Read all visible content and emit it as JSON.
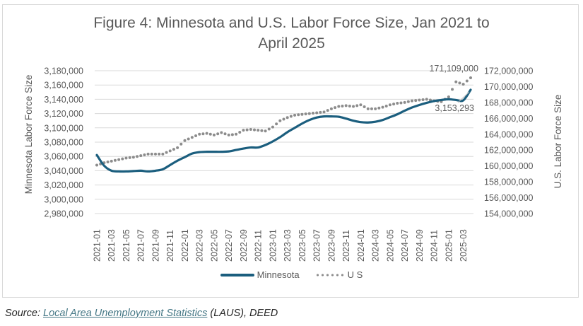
{
  "chart_data": {
    "type": "line",
    "title_line1": "Figure 4: Minnesota and U.S. Labor Force Size, Jan 2021 to",
    "title_line2": "April 2025",
    "xlabel": "",
    "ylabel_left": "Minnesota Labor Force Size",
    "ylabel_right": "U.S. Labor Force Size",
    "ylim_left": [
      2980000,
      3180000
    ],
    "ylim_right": [
      154000000,
      172000000
    ],
    "yticks_left": [
      "3,180,000",
      "3,160,000",
      "3,140,000",
      "3,120,000",
      "3,100,000",
      "3,080,000",
      "3,060,000",
      "3,040,000",
      "3,020,000",
      "3,000,000",
      "2,980,000"
    ],
    "yticks_right": [
      "172,000,000",
      "170,000,000",
      "168,000,000",
      "166,000,000",
      "164,000,000",
      "162,000,000",
      "160,000,000",
      "158,000,000",
      "156,000,000",
      "154,000,000"
    ],
    "x": [
      "2021-01",
      "2021-02",
      "2021-03",
      "2021-04",
      "2021-05",
      "2021-06",
      "2021-07",
      "2021-08",
      "2021-09",
      "2021-10",
      "2021-11",
      "2021-12",
      "2022-01",
      "2022-02",
      "2022-03",
      "2022-04",
      "2022-05",
      "2022-06",
      "2022-07",
      "2022-08",
      "2022-09",
      "2022-10",
      "2022-11",
      "2022-12",
      "2023-01",
      "2023-02",
      "2023-03",
      "2023-04",
      "2023-05",
      "2023-06",
      "2023-07",
      "2023-08",
      "2023-09",
      "2023-10",
      "2023-11",
      "2023-12",
      "2024-01",
      "2024-02",
      "2024-03",
      "2024-04",
      "2024-05",
      "2024-06",
      "2024-07",
      "2024-08",
      "2024-09",
      "2024-10",
      "2024-11",
      "2024-12",
      "2025-01",
      "2025-02",
      "2025-03",
      "2025-04"
    ],
    "xtick_labels": [
      "2021-01",
      "2021-03",
      "2021-05",
      "2021-07",
      "2021-09",
      "2021-11",
      "2022-01",
      "2022-03",
      "2022-05",
      "2022-07",
      "2022-09",
      "2022-11",
      "2023-01",
      "2023-03",
      "2023-05",
      "2023-07",
      "2023-09",
      "2023-11",
      "2024-01",
      "2024-03",
      "2024-05",
      "2024-07",
      "2024-09",
      "2024-11",
      "2025-01",
      "2025-03"
    ],
    "grid": true,
    "legend_position": "bottom",
    "series": [
      {
        "name": "Minnesota",
        "axis": "left",
        "color": "#1b5e7e",
        "style": "solid",
        "values": [
          3062000,
          3047000,
          3040000,
          3039000,
          3039000,
          3039500,
          3040000,
          3039000,
          3040000,
          3042000,
          3048000,
          3054000,
          3059000,
          3064000,
          3066000,
          3066500,
          3066500,
          3066500,
          3067000,
          3069000,
          3071000,
          3072500,
          3072500,
          3076000,
          3081000,
          3087000,
          3094000,
          3100000,
          3106000,
          3111000,
          3114500,
          3116000,
          3116000,
          3115500,
          3113000,
          3110000,
          3108000,
          3107500,
          3108500,
          3111000,
          3115000,
          3119000,
          3124000,
          3128500,
          3132000,
          3135000,
          3137500,
          3139000,
          3140000,
          3139000,
          3138500,
          3153293
        ]
      },
      {
        "name": "US",
        "axis": "right",
        "color": "#8c8c8c",
        "style": "dotted",
        "values": [
          160100000,
          160400000,
          160600000,
          160800000,
          161000000,
          161100000,
          161300000,
          161500000,
          161500000,
          161500000,
          161900000,
          162300000,
          163200000,
          163600000,
          164000000,
          164100000,
          163900000,
          164200000,
          163900000,
          164000000,
          164500000,
          164600000,
          164500000,
          164400000,
          164900000,
          165700000,
          166100000,
          166400000,
          166500000,
          166600000,
          166700000,
          166800000,
          167200000,
          167500000,
          167600000,
          167500000,
          167700000,
          167200000,
          167200000,
          167400000,
          167700000,
          167900000,
          168000000,
          168200000,
          168300000,
          168400000,
          168200000,
          168100000,
          168700000,
          170600000,
          170300000,
          171109000
        ]
      }
    ],
    "annotations": [
      {
        "text": "171,109,000",
        "series": "US",
        "point": "2025-04"
      },
      {
        "text": "3,153,293",
        "series": "Minnesota",
        "point": "2025-04"
      }
    ]
  },
  "legend": {
    "minnesota": "Minnesota",
    "us": "U S"
  },
  "source": {
    "prefix": "Source: ",
    "link_text": "Local Area Unemployment Statistics",
    "suffix": " (LAUS), DEED"
  }
}
